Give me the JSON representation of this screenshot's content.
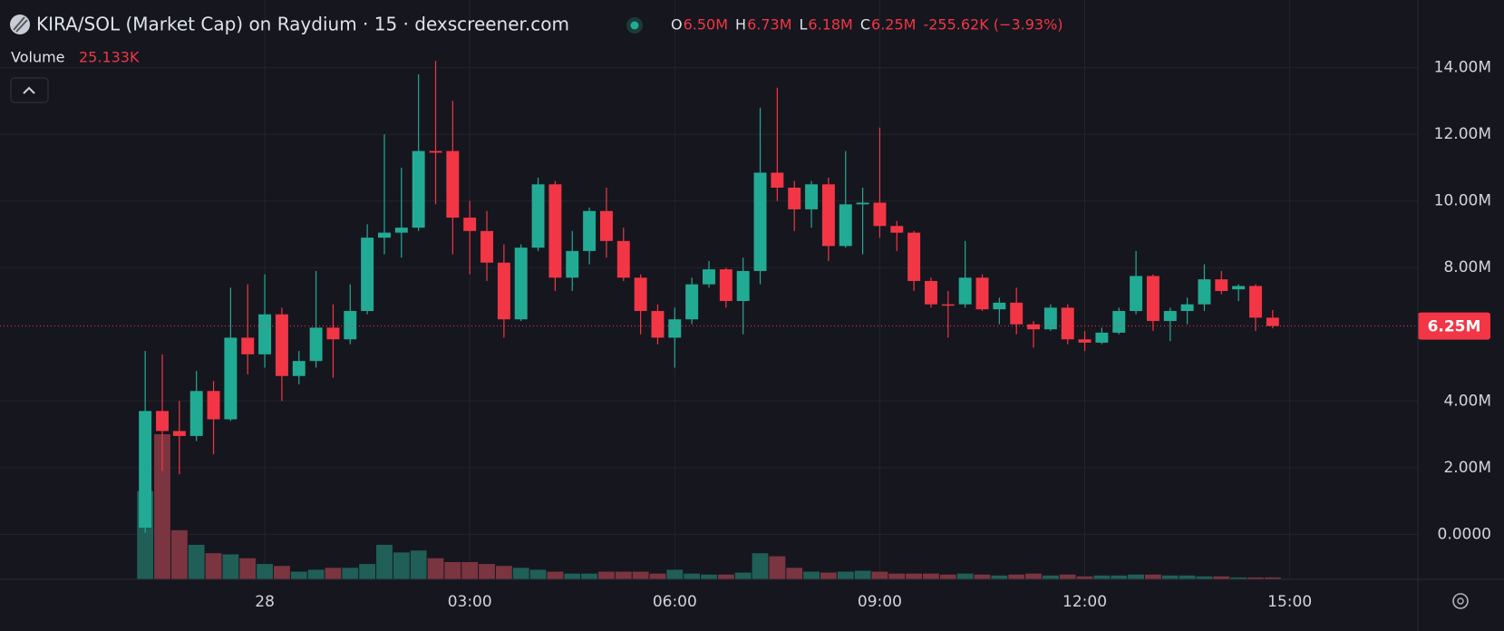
{
  "chart_data": {
    "type": "candlestick",
    "title": "KIRA/SOL (Market Cap) on Raydium · 15 · dexscreener.com",
    "ohlc": [
      {
        "label": "O",
        "value": "6.50M"
      },
      {
        "label": "H",
        "value": "6.73M"
      },
      {
        "label": "L",
        "value": "6.18M"
      },
      {
        "label": "C",
        "value": "6.25M"
      }
    ],
    "change": "-255.62K (−3.93%)",
    "volume_title": "Volume",
    "volume_label": "25.133K",
    "last_label": "6.25M",
    "up_color": "#22ab94",
    "down_color": "#f23645",
    "volume_up_color": "#1f5f57",
    "volume_down_color": "#7a3540",
    "open": [
      0.2,
      3.7,
      3.1,
      2.95,
      4.3,
      3.45,
      5.9,
      5.4,
      6.6,
      4.75,
      5.2,
      6.2,
      5.85,
      6.7,
      8.9,
      9.05,
      9.2,
      11.5,
      11.5,
      9.5,
      9.1,
      8.15,
      6.45,
      8.6,
      10.5,
      7.7,
      8.5,
      9.7,
      8.8,
      7.7,
      6.7,
      5.9,
      6.45,
      7.5,
      7.95,
      7.0,
      7.9,
      10.85,
      10.4,
      9.75,
      10.5,
      8.65,
      9.9,
      9.95,
      9.25,
      9.05,
      7.6,
      6.9,
      6.9,
      7.7,
      6.75,
      6.95,
      6.3,
      6.15,
      6.8,
      5.85,
      5.75,
      6.05,
      6.7,
      7.75,
      6.4,
      6.7,
      6.9,
      7.65,
      7.35,
      7.45,
      6.5
    ],
    "high": [
      5.5,
      5.4,
      4.0,
      4.9,
      4.6,
      7.4,
      7.5,
      7.8,
      6.8,
      5.5,
      7.9,
      6.9,
      7.5,
      9.3,
      12.0,
      11.0,
      13.8,
      14.2,
      13.0,
      10.0,
      9.7,
      8.7,
      8.7,
      10.7,
      10.6,
      9.1,
      9.8,
      10.4,
      9.2,
      7.8,
      6.9,
      6.8,
      7.7,
      8.2,
      8.0,
      8.3,
      12.8,
      13.4,
      10.6,
      10.6,
      10.7,
      11.5,
      10.4,
      12.2,
      9.4,
      9.1,
      7.7,
      7.3,
      8.8,
      7.8,
      7.1,
      7.4,
      6.4,
      6.9,
      6.9,
      6.1,
      6.2,
      6.8,
      8.5,
      7.8,
      6.8,
      7.1,
      8.1,
      7.9,
      7.5,
      7.5,
      6.73
    ],
    "low": [
      0.05,
      1.9,
      1.8,
      2.8,
      2.4,
      3.4,
      4.8,
      5.0,
      4.0,
      4.5,
      5.0,
      4.7,
      5.7,
      6.6,
      8.4,
      8.3,
      9.1,
      9.9,
      8.4,
      7.8,
      7.6,
      5.9,
      6.4,
      8.5,
      7.3,
      7.3,
      8.1,
      8.3,
      7.6,
      6.0,
      5.7,
      5.0,
      6.3,
      7.4,
      6.8,
      6.0,
      7.5,
      10.0,
      9.1,
      9.2,
      8.2,
      8.6,
      8.4,
      8.9,
      8.5,
      7.3,
      6.8,
      5.9,
      6.8,
      6.7,
      6.3,
      6.0,
      5.6,
      6.1,
      5.7,
      5.5,
      5.7,
      6.0,
      6.6,
      6.1,
      5.8,
      6.3,
      6.7,
      7.2,
      7.0,
      6.1,
      6.18
    ],
    "close": [
      3.7,
      3.1,
      2.95,
      4.3,
      3.45,
      5.9,
      5.4,
      6.6,
      4.75,
      5.2,
      6.2,
      5.85,
      6.7,
      8.9,
      9.05,
      9.2,
      11.5,
      11.45,
      9.5,
      9.1,
      8.15,
      6.45,
      8.6,
      10.5,
      7.7,
      8.5,
      9.7,
      8.8,
      7.7,
      6.7,
      5.9,
      6.45,
      7.5,
      7.95,
      7.0,
      7.9,
      10.85,
      10.4,
      9.75,
      10.5,
      8.65,
      9.9,
      9.95,
      9.25,
      9.05,
      7.6,
      6.9,
      6.88,
      7.7,
      6.75,
      6.95,
      6.3,
      6.15,
      6.8,
      5.85,
      5.75,
      6.05,
      6.7,
      7.75,
      6.4,
      6.7,
      6.9,
      7.65,
      7.3,
      7.45,
      6.5,
      6.25
    ],
    "volume": [
      1150,
      1890,
      640,
      450,
      340,
      325,
      275,
      200,
      175,
      100,
      125,
      150,
      150,
      200,
      450,
      350,
      375,
      275,
      225,
      225,
      200,
      175,
      150,
      125,
      100,
      75,
      75,
      100,
      100,
      100,
      75,
      125,
      75,
      62,
      62,
      88,
      340,
      300,
      150,
      100,
      88,
      100,
      112,
      100,
      75,
      75,
      75,
      62,
      75,
      62,
      50,
      62,
      75,
      50,
      62,
      38,
      50,
      50,
      62,
      62,
      50,
      50,
      38,
      38,
      25,
      25,
      25.133
    ],
    "xlim": [
      -8.5,
      74.5
    ],
    "xticks": [
      {
        "value": 7,
        "label": "28"
      },
      {
        "value": 19,
        "label": "03:00"
      },
      {
        "value": 31,
        "label": "06:00"
      },
      {
        "value": 43,
        "label": "09:00"
      },
      {
        "value": 55,
        "label": "12:00"
      },
      {
        "value": 67,
        "label": "15:00"
      }
    ],
    "ylim": [
      -1.35,
      16.03
    ],
    "yticks": [
      {
        "value": 0,
        "label": "0.0000"
      },
      {
        "value": 2,
        "label": "2.00M"
      },
      {
        "value": 4,
        "label": "4.00M"
      },
      {
        "value": 8,
        "label": "8.00M"
      },
      {
        "value": 10,
        "label": "10.00M"
      },
      {
        "value": 12,
        "label": "12.00M"
      },
      {
        "value": 14,
        "label": "14.00M"
      }
    ],
    "grid": true
  }
}
